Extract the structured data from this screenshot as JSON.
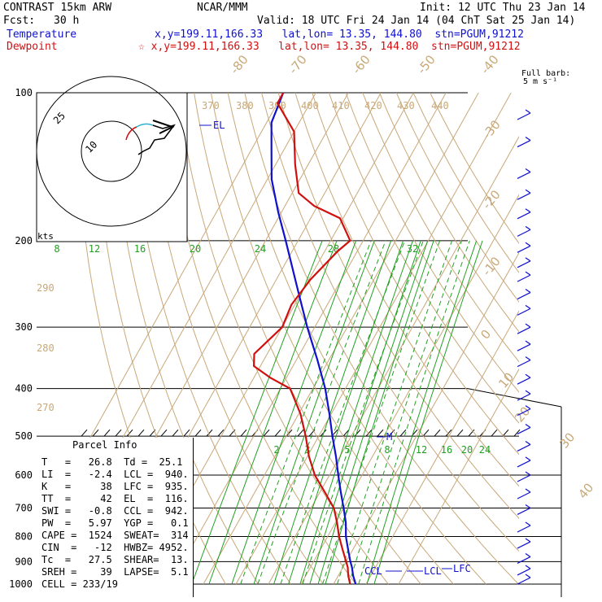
{
  "header": {
    "model": "CONTRAST 15km ARW",
    "center": "NCAR/MMM",
    "init": "Init: 12 UTC Thu 23 Jan 14",
    "fcst_label": "Fcst:",
    "fcst_value": "30 h",
    "valid": "Valid: 18 UTC Fri 24 Jan 14 (04 ChT Sat 25 Jan 14)",
    "temp_label": "Temperature",
    "temp_loc": "x,y=199.11,166.33   lat,lon= 13.35, 144.80  stn=PGUM,91212",
    "dew_label": "Dewpoint",
    "dew_loc": "☆ x,y=199.11,166.33   lat,lon= 13.35, 144.80  stn=PGUM,91212"
  },
  "colors": {
    "temperature": "#1010d0",
    "dewpoint": "#d01010",
    "isotherm": "#c8a878",
    "mixing_ratio": "#20a020",
    "isobar": "#000000"
  },
  "barb_key": {
    "line1": "Full barb:",
    "line2": "5 m s⁻¹"
  },
  "hodograph": {
    "unit_label": "kts",
    "ring_labels": [
      "25",
      "10"
    ]
  },
  "parcel_info": {
    "title": "Parcel Info",
    "rows": [
      "T   =   26.8  Td =  25.1",
      "LI  =   -2.4  LCL =  940.",
      "K   =     38  LFC =  935.",
      "TT  =     42  EL  =  116.",
      "SWI =   -0.8  CCL =  942.",
      "PW  =   5.97  YGP =   0.1",
      "CAPE =  1524  SWEAT=  314",
      "CIN  =   -12  HWBZ= 4952.",
      "Tc  =   27.5  SHEAR=  13.",
      "SREH =    39  LAPSE=  5.1",
      "CELL = 233/19"
    ]
  },
  "chart_data": {
    "type": "line",
    "title": "",
    "pressure_levels": [
      100,
      200,
      300,
      400,
      500,
      600,
      700,
      800,
      900,
      1000
    ],
    "isotherms": [
      -80,
      -70,
      -60,
      -50,
      -40,
      -30,
      -20,
      -10,
      0,
      10,
      20,
      30,
      40
    ],
    "theta_labels": [
      270,
      280,
      290,
      370,
      380,
      390,
      400,
      410,
      420,
      430,
      440
    ],
    "mixing_ratio_upper": [
      8,
      12,
      16,
      20,
      24,
      28,
      32
    ],
    "mixing_ratio_lower": [
      2,
      3,
      5,
      8,
      12,
      16,
      20,
      24
    ],
    "series": [
      {
        "name": "Temperature",
        "p": [
          1000,
          960,
          925,
          900,
          850,
          800,
          750,
          700,
          650,
          600,
          550,
          500,
          450,
          400,
          350,
          300,
          250,
          200,
          175,
          150,
          130,
          115,
          100
        ],
        "t": [
          26.8,
          24.5,
          22.8,
          21.3,
          18.5,
          15.6,
          13.2,
          10.0,
          6.4,
          2.7,
          -1.2,
          -5.8,
          -10.6,
          -16.2,
          -23.5,
          -32.3,
          -42.0,
          -53.8,
          -61.0,
          -68.7,
          -74.0,
          -78.5,
          -80.0
        ]
      },
      {
        "name": "Dewpoint",
        "p": [
          1000,
          960,
          925,
          900,
          850,
          800,
          750,
          700,
          650,
          600,
          550,
          500,
          450,
          400,
          380,
          360,
          340,
          300,
          270,
          240,
          210,
          200,
          180,
          170,
          160,
          140,
          120,
          105,
          100
        ],
        "t": [
          25.1,
          23.0,
          21.5,
          20.0,
          16.8,
          13.5,
          10.5,
          7.0,
          1.5,
          -4.5,
          -9.5,
          -14.0,
          -19.5,
          -27.0,
          -35.0,
          -42.0,
          -44.0,
          -40.0,
          -41.0,
          -39.5,
          -36.0,
          -34.0,
          -41.0,
          -51.0,
          -58.0,
          -64.0,
          -70.0,
          -80.0,
          -80.0
        ]
      }
    ],
    "annotations": [
      "EL",
      "M",
      "CCL",
      "LCL",
      "LFC"
    ],
    "wind_barbs": [
      {
        "p": 110
      },
      {
        "p": 125
      },
      {
        "p": 145
      },
      {
        "p": 160
      },
      {
        "p": 175
      },
      {
        "p": 190
      },
      {
        "p": 205
      },
      {
        "p": 220
      },
      {
        "p": 235
      },
      {
        "p": 255
      },
      {
        "p": 275
      },
      {
        "p": 300
      },
      {
        "p": 325
      },
      {
        "p": 350
      },
      {
        "p": 380
      },
      {
        "p": 410
      },
      {
        "p": 440
      },
      {
        "p": 480
      },
      {
        "p": 520
      },
      {
        "p": 560
      },
      {
        "p": 600
      },
      {
        "p": 650
      },
      {
        "p": 700
      },
      {
        "p": 760
      },
      {
        "p": 820
      },
      {
        "p": 880
      },
      {
        "p": 930
      },
      {
        "p": 970
      }
    ]
  }
}
